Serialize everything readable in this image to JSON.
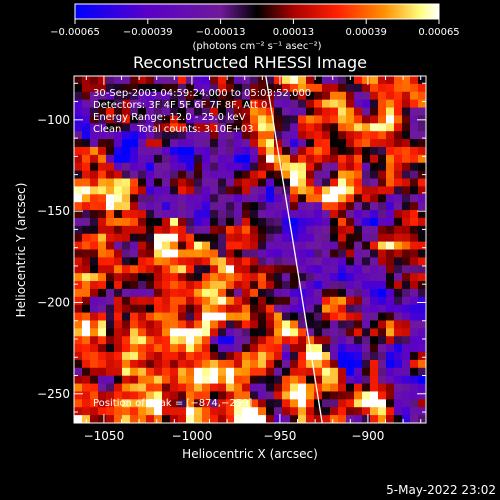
{
  "chart_data": {
    "type": "heatmap",
    "title": "Reconstructed RHESSI Image",
    "xlabel": "Heliocentric X (arcsec)",
    "ylabel": "Heliocentric Y (arcsec)",
    "xlim": [
      -1067,
      -867
    ],
    "ylim": [
      -266,
      -76
    ],
    "xticks": [
      -1050,
      -1000,
      -950,
      -900
    ],
    "xtick_labels": [
      "−1050",
      "−1000",
      "−950",
      "−900"
    ],
    "yticks": [
      -100,
      -150,
      -200,
      -250
    ],
    "ytick_labels": [
      "−100",
      "−150",
      "−200",
      "−250"
    ],
    "colorbar": {
      "min": -0.00065,
      "max": 0.00065,
      "ticks": [
        -0.00065,
        -0.00039,
        -0.00013,
        0.00013,
        0.00039,
        0.00065
      ],
      "tick_labels": [
        "−0.00065",
        "−0.00039",
        "−0.00013",
        "0.00013",
        "0.00039",
        "0.00065"
      ],
      "units_label": "(photons cm⁻² s⁻¹ asec⁻²)",
      "colors": [
        "#0000ff",
        "#5a00c8",
        "#7a1aa6",
        "#000000",
        "#b40000",
        "#ff2000",
        "#ff8000",
        "#ffff80",
        "#ffffff"
      ]
    },
    "annotations": [
      "30-Sep-2003 04:59:24.000 to 05:03:52.000",
      "Detectors: 3F 4F 5F 6F 7F 8F, Att 0",
      "Energy Range: 12.0 - 25.0 keV",
      "Clean     Total counts: 3.10E+03"
    ],
    "peak_label": "Position of Peak = [−874,−259]",
    "peak": [
      -874,
      -259
    ],
    "limb_line": {
      "x": [
        -958,
        -942,
        -926
      ],
      "y": [
        -76,
        -170,
        -266
      ]
    }
  },
  "timestamp": "5-May-2022 23:02"
}
